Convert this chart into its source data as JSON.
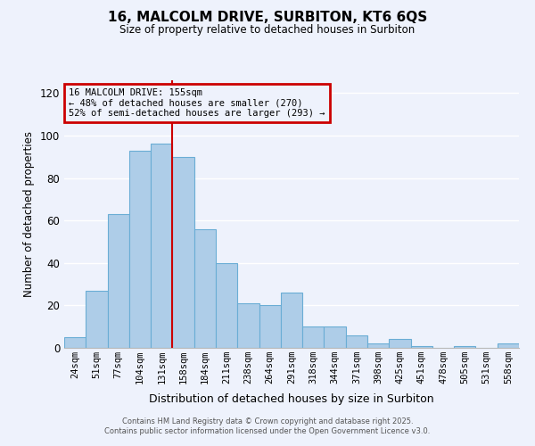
{
  "title": "16, MALCOLM DRIVE, SURBITON, KT6 6QS",
  "subtitle": "Size of property relative to detached houses in Surbiton",
  "xlabel": "Distribution of detached houses by size in Surbiton",
  "ylabel": "Number of detached properties",
  "bar_labels": [
    "24sqm",
    "51sqm",
    "77sqm",
    "104sqm",
    "131sqm",
    "158sqm",
    "184sqm",
    "211sqm",
    "238sqm",
    "264sqm",
    "291sqm",
    "318sqm",
    "344sqm",
    "371sqm",
    "398sqm",
    "425sqm",
    "451sqm",
    "478sqm",
    "505sqm",
    "531sqm",
    "558sqm"
  ],
  "bar_values": [
    5,
    27,
    63,
    93,
    96,
    90,
    56,
    40,
    21,
    20,
    26,
    10,
    10,
    6,
    2,
    4,
    1,
    0,
    1,
    0,
    2
  ],
  "bar_color": "#aecde8",
  "bar_edge_color": "#6aadd5",
  "vline_color": "#cc0000",
  "ylim": [
    0,
    126
  ],
  "yticks": [
    0,
    20,
    40,
    60,
    80,
    100,
    120
  ],
  "legend_title": "16 MALCOLM DRIVE: 155sqm",
  "legend_line1": "← 48% of detached houses are smaller (270)",
  "legend_line2": "52% of semi-detached houses are larger (293) →",
  "legend_box_color": "#cc0000",
  "footer_line1": "Contains HM Land Registry data © Crown copyright and database right 2025.",
  "footer_line2": "Contains public sector information licensed under the Open Government Licence v3.0.",
  "background_color": "#eef2fc",
  "grid_color": "#ffffff"
}
